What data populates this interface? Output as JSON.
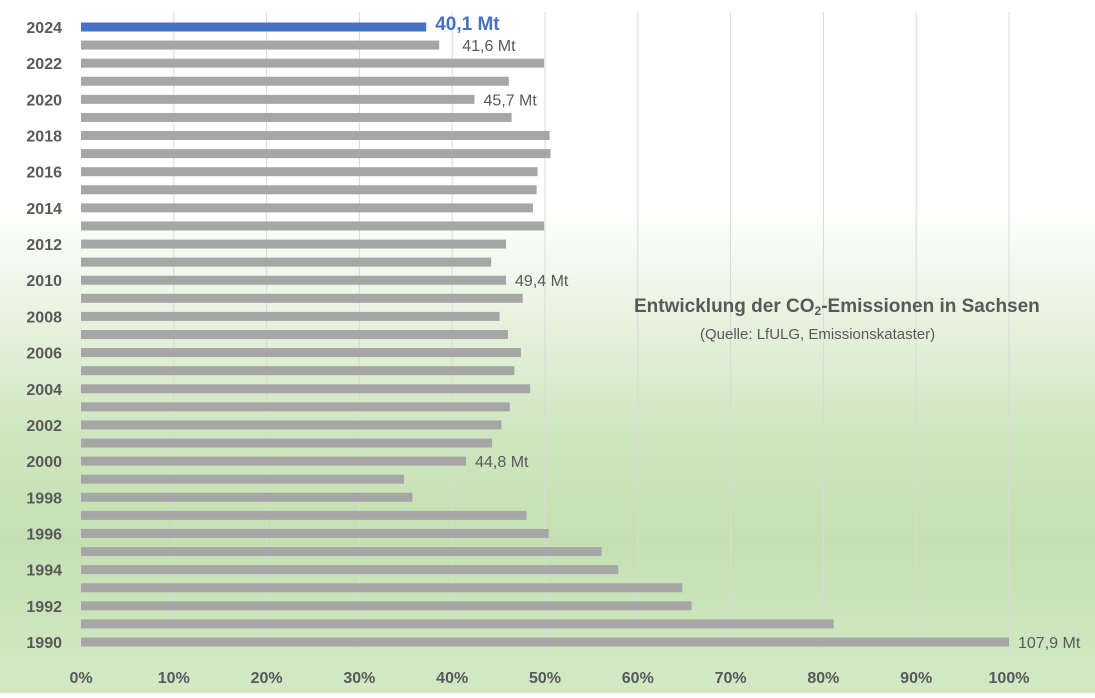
{
  "chart_data": {
    "type": "bar",
    "orientation": "horizontal",
    "title_parts": [
      "Entwicklung der CO",
      "2",
      "-Emissionen in Sachsen"
    ],
    "subtitle": "(Quelle: LfULG, Emissionskataster)",
    "x_ticks": [
      "0%",
      "10%",
      "20%",
      "30%",
      "40%",
      "50%",
      "60%",
      "70%",
      "80%",
      "90%",
      "100%"
    ],
    "xlim": [
      0,
      100
    ],
    "grid": true,
    "years": [
      1990,
      1991,
      1992,
      1993,
      1994,
      1995,
      1996,
      1997,
      1998,
      1999,
      2000,
      2001,
      2002,
      2003,
      2004,
      2005,
      2006,
      2007,
      2008,
      2009,
      2010,
      2011,
      2012,
      2013,
      2014,
      2015,
      2016,
      2017,
      2018,
      2019,
      2020,
      2021,
      2022,
      2023,
      2024
    ],
    "y_tick_labels": [
      "1990",
      "1992",
      "1994",
      "1996",
      "1998",
      "2000",
      "2002",
      "2004",
      "2006",
      "2008",
      "2010",
      "2012",
      "2014",
      "2016",
      "2018",
      "2020",
      "2022",
      "2024"
    ],
    "values_percent": [
      100,
      81.1,
      65.8,
      64.8,
      57.9,
      56.1,
      50.4,
      48.0,
      35.7,
      34.8,
      41.5,
      44.3,
      45.3,
      46.2,
      48.4,
      46.7,
      47.4,
      46.0,
      45.1,
      47.6,
      45.8,
      44.2,
      45.8,
      49.9,
      48.7,
      49.1,
      49.2,
      50.6,
      50.5,
      46.4,
      42.4,
      46.1,
      49.9,
      38.6,
      37.2
    ],
    "data_labels": [
      {
        "year": 1990,
        "text": "107,9 Mt"
      },
      {
        "year": 2000,
        "text": "44,8 Mt"
      },
      {
        "year": 2010,
        "text": "49,4 Mt"
      },
      {
        "year": 2020,
        "text": "45,7 Mt"
      },
      {
        "year": 2023,
        "text": "41,6 Mt"
      },
      {
        "year": 2024,
        "text": "40,1 Mt"
      }
    ],
    "highlight_year": 2024,
    "colors": {
      "bar": "#a6a6a6",
      "highlight": "#4472c4",
      "grid": "#d9d9d9",
      "text": "#595959"
    }
  }
}
